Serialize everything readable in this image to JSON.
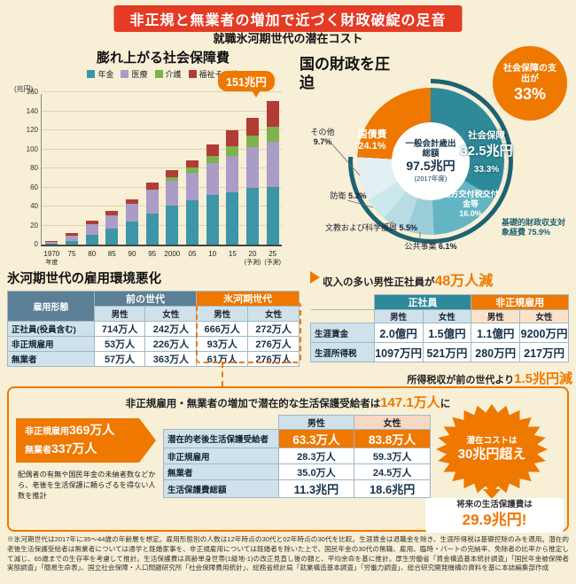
{
  "page": {
    "banner": "非正規と無業者の増加で近づく財政破綻の足音",
    "subtitle": "就職氷河期世代の潜在コスト",
    "footnote": "※氷河期世代は2017年に35～44歳の年齢層を想定。雇用形態別の人数は12年時点の30代と02年時点の30代を比較。生涯賃金は退職金を除き、生涯所得税は基礎控除のみを適用。潜在的老後生活保護受給者は無業者については通学と既婚家事を、非正規雇用については既婚者を除いた上で、国民年金の30代の無職、雇用、臨時・パートの完納率、免除者の比率から推定して減じ、65歳までの生存率を考慮して推計。生活保護費は高齢単身世帯(1級地-1)の改正見直し後の額と、平均余命を基に推計。厚生労働省「賃金構造基本統計調査」「国民年金被保険者実態調査」「簡易生命表」、国立社会保障・人口問題研究所「社会保障費用統計」、総務省統計局「就業構造基本調査」「労働力調査」、総合研究開発機構の資料を基に本誌編集部作成"
  },
  "chart_data": [
    {
      "type": "bar",
      "stacked": true,
      "title": "膨れ上がる社会保障費",
      "unit_label": "(兆円)",
      "callout": "151兆円",
      "categories": [
        "1970",
        "75",
        "80",
        "85",
        "90",
        "95",
        "2000",
        "05",
        "10",
        "15",
        "20",
        "25"
      ],
      "category_subs": [
        "年度",
        "",
        "",
        "",
        "",
        "",
        "",
        "",
        "",
        "",
        "(予測)",
        "(予測)"
      ],
      "ylim": [
        0,
        160
      ],
      "ytick_step": 20,
      "grid": true,
      "legend_position": "top",
      "series": [
        {
          "name": "年金",
          "color": "#3d96a8",
          "values": [
            0.9,
            3.9,
            10.3,
            16.9,
            23.8,
            33.0,
            40.5,
            46.3,
            52.2,
            54.9,
            59.2,
            60.4
          ]
        },
        {
          "name": "医療",
          "color": "#a99cc7",
          "values": [
            2.1,
            5.7,
            10.8,
            14.2,
            18.6,
            24.6,
            26.6,
            28.7,
            33.6,
            38.5,
            42.8,
            47.8
          ]
        },
        {
          "name": "介護",
          "color": "#7eb24b",
          "values": [
            0,
            0,
            0,
            0,
            0,
            0,
            3.3,
            5.9,
            7.5,
            9.8,
            12.3,
            15.3
          ]
        },
        {
          "name": "福祉その他",
          "color": "#b23b35",
          "values": [
            0.5,
            2.2,
            3.6,
            4.7,
            4.9,
            7.4,
            7.9,
            7.9,
            12.0,
            16.6,
            18.7,
            27.5
          ]
        }
      ]
    },
    {
      "type": "pie",
      "title": "国の財政を圧迫",
      "center": {
        "label": "一般会計歳出総額",
        "value": "97.5兆円",
        "note": "(2017年度)"
      },
      "callout": {
        "text": "社会保障の支出が",
        "value": "33%"
      },
      "outer_ring": {
        "label": "基礎的財政収支対象経費",
        "pct_label": "75.9%",
        "pct": 75.9,
        "color": "#1d6372"
      },
      "slices": [
        {
          "name": "社会保障",
          "value": "32.5兆円",
          "pct": 33.3,
          "pct_label": "33.3%",
          "color": "#2e8a99"
        },
        {
          "name": "地方交付税交付金等",
          "pct": 16.0,
          "pct_label": "16.0%",
          "color": "#64b5c3"
        },
        {
          "name": "公共事業",
          "pct": 6.1,
          "pct_label": "6.1%",
          "color": "#9bcdd8"
        },
        {
          "name": "文教および科学振興",
          "pct": 5.5,
          "pct_label": "5.5%",
          "color": "#b7dce4"
        },
        {
          "name": "防衛",
          "pct": 5.3,
          "pct_label": "5.3%",
          "color": "#cde8ed"
        },
        {
          "name": "その他",
          "pct": 9.7,
          "pct_label": "9.7%",
          "color": "#e2f0f3"
        },
        {
          "name": "国債費",
          "pct": 24.1,
          "pct_label": "24.1%",
          "color": "#ee7800"
        }
      ]
    }
  ],
  "emp_section": {
    "title": "氷河期世代の雇用環境悪化",
    "col_head": "雇用形態",
    "group1": "前の世代",
    "group2": "氷河期世代",
    "sub_heads": [
      "男性",
      "女性",
      "男性",
      "女性"
    ],
    "rows": [
      {
        "label": "正社員(役員含む)",
        "cells": [
          "714万人",
          "242万人",
          "666万人",
          "272万人"
        ]
      },
      {
        "label": "非正規雇用",
        "cells": [
          "53万人",
          "226万人",
          "93万人",
          "276万人"
        ]
      },
      {
        "label": "無業者",
        "cells": [
          "57万人",
          "363万人",
          "61万人",
          "276万人"
        ]
      }
    ]
  },
  "income_section": {
    "title_pre": "収入の多い男性正社員が",
    "title_value": "48万人減",
    "group1": "正社員",
    "group2": "非正規雇用",
    "sub_heads": [
      "男性",
      "女性",
      "男性",
      "女性"
    ],
    "rows": [
      {
        "label": "生涯賃金",
        "cells": [
          "2.0億円",
          "1.5億円",
          "1.1億円",
          "9200万円"
        ]
      },
      {
        "label": "生涯所得税",
        "cells": [
          "1097万円",
          "521万円",
          "280万円",
          "217万円"
        ]
      }
    ],
    "note_pre": "所得税収が前の世代より",
    "note_value": "1.5兆円減"
  },
  "welfare_section": {
    "title_pre": "非正規雇用・無業者の増加で潜在的な生活保護受給者は",
    "title_value": "147.1万人",
    "title_post": "に",
    "callout1_label": "非正規雇用",
    "callout1_value": "369万人",
    "callout2_label": "無業者",
    "callout2_value": "337万人",
    "note": "配偶者の有無や国民年金の未納者数などから、老後を生活保護に頼らざるを得ない人数を推計",
    "col_heads": [
      "男性",
      "女性"
    ],
    "rows": [
      {
        "label": "潜在的老後生活保護受給者",
        "cells": [
          "63.3万人",
          "83.8万人"
        ]
      },
      {
        "label": "非正規雇用",
        "cells": [
          "28.3万人",
          "59.3万人"
        ]
      },
      {
        "label": "無業者",
        "cells": [
          "35.0万人",
          "24.5万人"
        ]
      },
      {
        "label": "生活保護費総額",
        "cells": [
          "11.3兆円",
          "18.6兆円"
        ]
      }
    ],
    "starburst_pre": "潜在コストは",
    "starburst_value": "30兆円超え",
    "future_pre": "将来の生活保護費は",
    "future_value": "29.9兆円!"
  }
}
